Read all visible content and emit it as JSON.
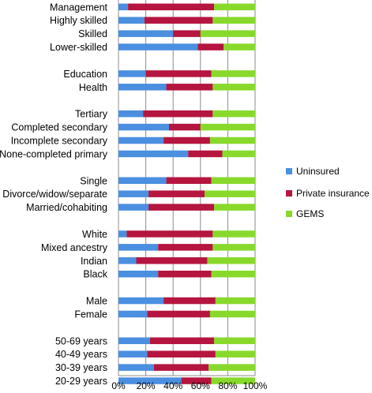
{
  "chart_data": {
    "type": "bar",
    "orientation": "horizontal",
    "stacked": true,
    "title": "",
    "xlabel": "",
    "ylabel": "",
    "xlim": [
      0,
      100
    ],
    "x_ticks": [
      "0%",
      "20%",
      "40%",
      "60%",
      "80%",
      "100%"
    ],
    "grid": true,
    "legend_position": "right",
    "categories": [
      "Management",
      "Highly skilled",
      "Skilled",
      "Lower-skilled",
      "",
      "Education",
      "Health",
      "",
      "Tertiary",
      "Completed secondary",
      "Incomplete secondary",
      "None-completed primary",
      "",
      "Single",
      "Divorce/widow/separate",
      "Married/cohabiting",
      "",
      "White",
      "Mixed ancestry",
      "Indian",
      "Black",
      "",
      "Male",
      "Female",
      "",
      "50-69 years",
      "40-49 years",
      "30-39 years",
      "20-29 years"
    ],
    "series": [
      {
        "name": "Uninsured",
        "color": "#4a8fe0",
        "values": [
          7,
          19,
          40,
          58,
          null,
          20,
          35,
          null,
          18,
          37,
          33,
          51,
          null,
          35,
          22,
          22,
          null,
          6,
          29,
          13,
          29,
          null,
          33,
          21,
          null,
          23,
          21,
          26,
          46
        ]
      },
      {
        "name": "Private insurance",
        "color": "#b5153f",
        "values": [
          63,
          50,
          20,
          19,
          null,
          48,
          34,
          null,
          51,
          23,
          34,
          25,
          null,
          33,
          41,
          48,
          null,
          63,
          40,
          52,
          39,
          null,
          38,
          46,
          null,
          47,
          50,
          40,
          22
        ]
      },
      {
        "name": "GEMS",
        "color": "#88d92c",
        "values": [
          30,
          31,
          40,
          23,
          null,
          32,
          31,
          null,
          31,
          40,
          33,
          24,
          null,
          32,
          37,
          30,
          null,
          31,
          31,
          35,
          32,
          null,
          29,
          33,
          null,
          30,
          29,
          34,
          32
        ]
      }
    ]
  }
}
